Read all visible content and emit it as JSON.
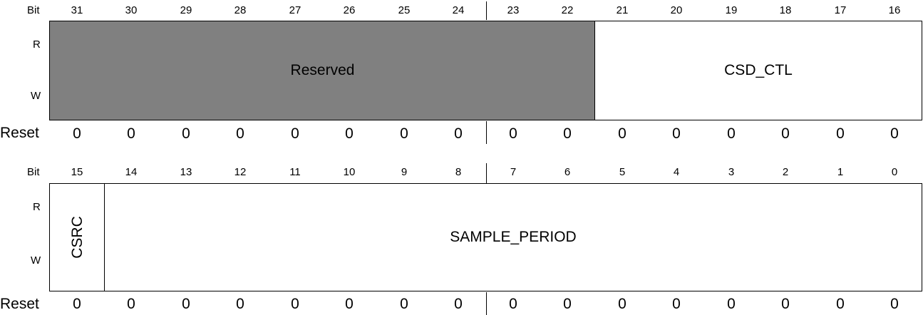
{
  "labels": {
    "bit": "Bit",
    "read": "R",
    "write": "W",
    "reset": "Reset"
  },
  "upper": {
    "bits": [
      "31",
      "30",
      "29",
      "28",
      "27",
      "26",
      "25",
      "24",
      "23",
      "22",
      "21",
      "20",
      "19",
      "18",
      "17",
      "16"
    ],
    "fields": [
      {
        "name": "Reserved",
        "msb": 31,
        "lsb": 22,
        "reserved": true
      },
      {
        "name": "CSD_CTL",
        "msb": 21,
        "lsb": 16,
        "reserved": false
      }
    ],
    "reset": [
      "0",
      "0",
      "0",
      "0",
      "0",
      "0",
      "0",
      "0",
      "0",
      "0",
      "0",
      "0",
      "0",
      "0",
      "0",
      "0"
    ]
  },
  "lower": {
    "bits": [
      "15",
      "14",
      "13",
      "12",
      "11",
      "10",
      "9",
      "8",
      "7",
      "6",
      "5",
      "4",
      "3",
      "2",
      "1",
      "0"
    ],
    "fields": [
      {
        "name": "CSRC",
        "msb": 15,
        "lsb": 15,
        "reserved": false,
        "vertical": true
      },
      {
        "name": "SAMPLE_PERIOD",
        "msb": 14,
        "lsb": 0,
        "reserved": false
      }
    ],
    "reset": [
      "0",
      "0",
      "0",
      "0",
      "0",
      "0",
      "0",
      "0",
      "0",
      "0",
      "0",
      "0",
      "0",
      "0",
      "0",
      "0"
    ]
  }
}
